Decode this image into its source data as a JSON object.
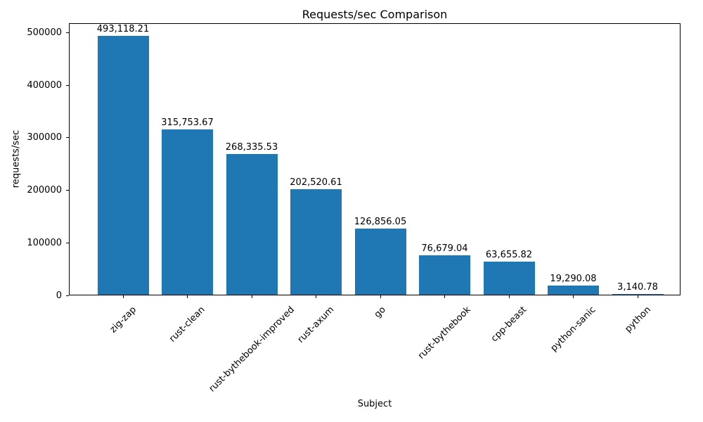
{
  "chart_data": {
    "type": "bar",
    "title": "Requests/sec Comparison",
    "xlabel": "Subject",
    "ylabel": "requests/sec",
    "categories": [
      "zig-zap",
      "rust-clean",
      "rust-bythebook-improved",
      "rust-axum",
      "go",
      "rust-bythebook",
      "cpp-beast",
      "python-sanic",
      "python"
    ],
    "values": [
      493118.21,
      315753.67,
      268335.53,
      202520.61,
      126856.05,
      76679.04,
      63655.82,
      19290.08,
      3140.78
    ],
    "value_labels": [
      "493,118.21",
      "315,753.67",
      "268,335.53",
      "202,520.61",
      "126,856.05",
      "76,679.04",
      "63,655.82",
      "19,290.08",
      "3,140.78"
    ],
    "yticks": [
      0,
      100000,
      200000,
      300000,
      400000,
      500000
    ],
    "ylim": [
      0,
      517774
    ],
    "bar_color": "#1f77b4",
    "grid": false,
    "legend": "none",
    "xtick_rotation_deg": 45
  }
}
